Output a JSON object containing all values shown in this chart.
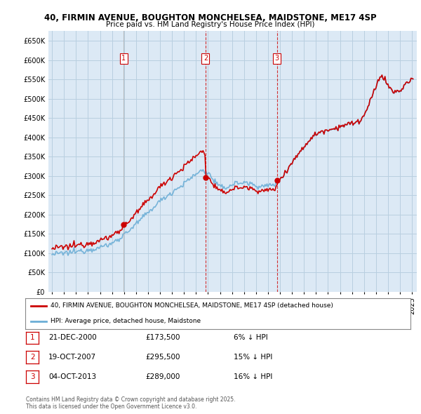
{
  "title_line1": "40, FIRMIN AVENUE, BOUGHTON MONCHELSEA, MAIDSTONE, ME17 4SP",
  "title_line2": "Price paid vs. HM Land Registry's House Price Index (HPI)",
  "legend_line1": "40, FIRMIN AVENUE, BOUGHTON MONCHELSEA, MAIDSTONE, ME17 4SP (detached house)",
  "legend_line2": "HPI: Average price, detached house, Maidstone",
  "transactions": [
    {
      "num": 1,
      "date": "21-DEC-2000",
      "price": 173500,
      "t": 2000.958,
      "pct": "6%",
      "dir": "↓"
    },
    {
      "num": 2,
      "date": "19-OCT-2007",
      "price": 295500,
      "t": 2007.792,
      "pct": "15%",
      "dir": "↓"
    },
    {
      "num": 3,
      "date": "04-OCT-2013",
      "price": 289000,
      "t": 2013.75,
      "pct": "16%",
      "dir": "↓"
    }
  ],
  "footer": "Contains HM Land Registry data © Crown copyright and database right 2025.\nThis data is licensed under the Open Government Licence v3.0.",
  "hpi_color": "#6baed6",
  "price_color": "#cc0000",
  "vline_color": "#cc0000",
  "ylim_min": 0,
  "ylim_max": 675000,
  "xlim_min": 1994.7,
  "xlim_max": 2025.4,
  "chart_bg": "#dce9f5",
  "grid_color": "#b8cfe0",
  "fig_bg": "#ffffff",
  "hpi_anchors_x": [
    1995.0,
    1996.0,
    1997.0,
    1998.0,
    1999.0,
    2000.0,
    2001.0,
    2002.0,
    2003.0,
    2004.0,
    2005.0,
    2006.0,
    2007.0,
    2007.5,
    2008.0,
    2008.5,
    2009.0,
    2009.5,
    2010.0,
    2010.5,
    2011.0,
    2011.5,
    2012.0,
    2012.5,
    2013.0,
    2013.5,
    2014.0,
    2014.5,
    2015.0,
    2015.5,
    2016.0,
    2016.5,
    2017.0,
    2017.5,
    2018.0,
    2018.5,
    2019.0,
    2019.5,
    2020.0,
    2020.3,
    2020.8,
    2021.0,
    2021.5,
    2022.0,
    2022.3,
    2022.5,
    2022.8,
    2023.0,
    2023.3,
    2023.6,
    2024.0,
    2024.3,
    2024.6,
    2025.0
  ],
  "hpi_anchors_y": [
    97000,
    100000,
    104000,
    109000,
    115000,
    125000,
    148000,
    175000,
    205000,
    235000,
    258000,
    280000,
    305000,
    315000,
    308000,
    288000,
    270000,
    270000,
    278000,
    282000,
    283000,
    280000,
    276000,
    272000,
    275000,
    278000,
    292000,
    312000,
    335000,
    355000,
    375000,
    395000,
    408000,
    415000,
    420000,
    422000,
    428000,
    432000,
    435000,
    438000,
    445000,
    455000,
    490000,
    530000,
    555000,
    560000,
    545000,
    535000,
    520000,
    515000,
    520000,
    530000,
    540000,
    550000
  ],
  "sale1_t": 2000.958,
  "sale1_p": 173500,
  "sale2_t": 2007.792,
  "sale2_p": 295500,
  "sale3_t": 2013.75,
  "sale3_p": 289000
}
